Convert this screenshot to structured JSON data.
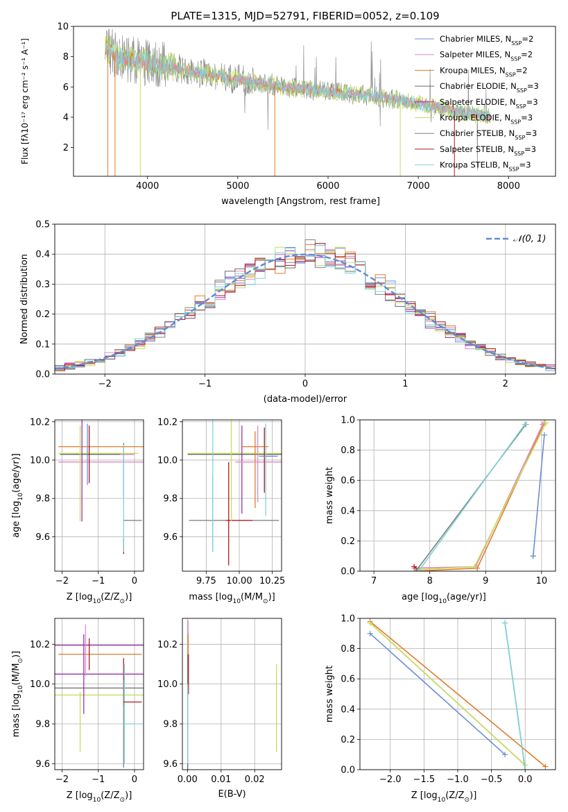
{
  "title": "PLATE=1315, MJD=52791, FIBERID=0052, z=0.109",
  "colors": {
    "chabrier_miles": "#6a8fd6",
    "salpeter_miles": "#e089c0",
    "kroupa_miles": "#e07b2a",
    "chabrier_elodie": "#6b6b6b",
    "salpeter_elodie": "#9b2fb3",
    "kroupa_elodie": "#c5de5a",
    "chabrier_stelib": "#808080",
    "salpeter_stelib": "#b3161c",
    "kroupa_stelib": "#7fd3d8",
    "gauss": "#5b8bd6"
  },
  "chart_data": [
    {
      "id": "spectrum",
      "type": "line",
      "xlabel": "wavelength [Angstrom, rest frame]",
      "ylabel": "Flux [f$_\\lambda$10$^{-17}$ erg cm$^{-2}$ s$^{-1}$ A$^{-1}$]",
      "ylabel_display": "Flux [fλ10⁻¹⁷ erg cm⁻² s⁻¹ A⁻¹]",
      "xlim": [
        3180,
        8520
      ],
      "ylim": [
        0.1,
        10
      ],
      "xticks": [
        4000,
        5000,
        6000,
        7000,
        8000
      ],
      "yticks": [
        2,
        4,
        6,
        8,
        10
      ],
      "continuum": [
        [
          3530,
          8.6
        ],
        [
          3700,
          7.9
        ],
        [
          4000,
          7.6
        ],
        [
          4500,
          7.0
        ],
        [
          5000,
          6.5
        ],
        [
          5500,
          6.0
        ],
        [
          6000,
          5.7
        ],
        [
          6500,
          5.4
        ],
        [
          7000,
          4.9
        ],
        [
          7500,
          4.3
        ],
        [
          7800,
          4.0
        ]
      ],
      "legend": [
        "Chabrier MILES, N$_{SSP}$=2",
        "Salpeter MILES, N$_{SSP}$=2",
        "Kroupa MILES, N$_{SSP}$=2",
        "Chabrier ELODIE, N$_{SSP}$=3",
        "Salpeter ELODIE, N$_{SSP}$=3",
        "Kroupa ELODIE, N$_{SSP}$=3",
        "Chabrier STELIB, N$_{SSP}$=3",
        "Salpeter STELIB, N$_{SSP}$=3",
        "Kroupa STELIB, N$_{SSP}$=3"
      ],
      "legend_parts": [
        [
          "Chabrier MILES, N",
          "SSP",
          "=2"
        ],
        [
          "Salpeter MILES, N",
          "SSP",
          "=2"
        ],
        [
          "Kroupa MILES, N",
          "SSP",
          "=2"
        ],
        [
          "Chabrier ELODIE, N",
          "SSP",
          "=3"
        ],
        [
          "Salpeter ELODIE, N",
          "SSP",
          "=3"
        ],
        [
          "Kroupa ELODIE, N",
          "SSP",
          "=3"
        ],
        [
          "Chabrier STELIB, N",
          "SSP",
          "=3"
        ],
        [
          "Salpeter STELIB, N",
          "SSP",
          "=3"
        ],
        [
          "Kroupa STELIB, N",
          "SSP",
          "=3"
        ]
      ],
      "legend_placement": "upper right"
    },
    {
      "id": "residual_hist",
      "type": "step-histogram",
      "xlabel": "(data-model)/error",
      "ylabel": "Normed distribution",
      "xlim": [
        -2.5,
        2.5
      ],
      "ylim": [
        0,
        0.5
      ],
      "xticks": [
        -2,
        -1,
        0,
        1,
        2
      ],
      "yticks": [
        0.0,
        0.1,
        0.2,
        0.3,
        0.4,
        0.5
      ],
      "grid": true,
      "bin_width": 0.1,
      "legend": "$\\mathcal{N}(0,1)$",
      "legend_display": "𝒩(0, 1)",
      "legend_placement": "upper right"
    },
    {
      "id": "age_vs_Z",
      "type": "errorbar",
      "xlabel": "Z [log$_{10}$(Z/Z$_\\odot$)]",
      "xlabel_display": [
        "Z [log",
        "10",
        "(Z/Z",
        "⊙",
        ")]"
      ],
      "ylabel": "age  [log$_{10}$(age/yr)]",
      "ylabel_display": [
        "age  [log",
        "10",
        "(age/yr)]"
      ],
      "xlim": [
        -2.2,
        0.25
      ],
      "ylim": [
        9.42,
        10.21
      ],
      "xticks": [
        -2,
        -1,
        0
      ],
      "yticks": [
        9.6,
        9.8,
        10.0,
        10.2
      ],
      "grid": true
    },
    {
      "id": "age_vs_mass",
      "type": "errorbar",
      "xlabel": "mass [log$_{10}$(M/M$_\\odot$)]",
      "xlabel_display": [
        "mass [log",
        "10",
        "(M/M",
        "⊙",
        ")]"
      ],
      "xlim": [
        9.57,
        10.32
      ],
      "ylim": [
        9.42,
        10.21
      ],
      "xticks": [
        9.75,
        10.0,
        10.25
      ],
      "xtick_labels": [
        "9.75",
        "10.00",
        "10.25"
      ],
      "yticks": [
        9.6,
        9.8,
        10.0,
        10.2
      ],
      "grid": true
    },
    {
      "id": "weight_vs_age",
      "type": "line",
      "xlabel": "age  [log$_{10}$(age/yr)]",
      "xlabel_display": [
        "age  [log",
        "10",
        "(age/yr)]"
      ],
      "ylabel": "mass weight",
      "xlim": [
        6.75,
        10.25
      ],
      "ylim": [
        0,
        1.0
      ],
      "xticks": [
        7,
        8,
        9,
        10
      ],
      "yticks": [
        0.0,
        0.2,
        0.4,
        0.6,
        0.8,
        1.0
      ],
      "grid": true,
      "series": [
        {
          "color": "chabrier_miles",
          "x": [
            9.85,
            10.05,
            9.85
          ],
          "y": [
            0.1,
            0.9,
            0.1
          ]
        },
        {
          "color": "kroupa_miles",
          "x": [
            7.75,
            8.85,
            10.05
          ],
          "y": [
            0.0,
            0.02,
            0.98
          ]
        },
        {
          "color": "salpeter_miles",
          "x": [
            7.72,
            8.82,
            10.02
          ],
          "y": [
            0.02,
            0.03,
            0.97
          ]
        },
        {
          "color": "salpeter_stelib",
          "x": [
            7.72,
            7.8
          ],
          "y": [
            0.03,
            0.01
          ]
        },
        {
          "color": "kroupa_elodie",
          "x": [
            7.78,
            8.8,
            10.08
          ],
          "y": [
            0.01,
            0.03,
            0.98
          ]
        },
        {
          "color": "chabrier_stelib",
          "x": [
            7.75,
            9.72
          ],
          "y": [
            0.0,
            0.97
          ]
        },
        {
          "color": "kroupa_stelib",
          "x": [
            7.8,
            9.7
          ],
          "y": [
            0.0,
            0.97
          ]
        }
      ]
    },
    {
      "id": "mass_vs_Z",
      "type": "errorbar",
      "xlabel": "Z [log$_{10}$(Z/Z$_\\odot$)]",
      "xlabel_display": [
        "Z [log",
        "10",
        "(Z/Z",
        "⊙",
        ")]"
      ],
      "ylabel": "mass [log$_{10}$(M/M$_\\odot$)]",
      "ylabel_display": [
        "mass [log",
        "10",
        "(M/M",
        "⊙",
        ")]"
      ],
      "xlim": [
        -2.2,
        0.25
      ],
      "ylim": [
        9.57,
        10.33
      ],
      "xticks": [
        -2,
        -1,
        0
      ],
      "yticks": [
        9.6,
        9.8,
        10.0,
        10.2
      ],
      "grid": true
    },
    {
      "id": "mass_vs_ebv",
      "type": "errorbar",
      "xlabel": "E(B-V)",
      "xlim": [
        -0.0015,
        0.028
      ],
      "ylim": [
        9.57,
        10.33
      ],
      "xticks": [
        0.0,
        0.01,
        0.02
      ],
      "xtick_labels": [
        "0.00",
        "0.01",
        "0.02"
      ],
      "yticks": [
        9.6,
        9.8,
        10.0,
        10.2
      ],
      "grid": true
    },
    {
      "id": "weight_vs_Z",
      "type": "line",
      "xlabel": "Z [log$_{10}$(Z/Z$_\\odot$)]",
      "xlabel_display": [
        "Z [log",
        "10",
        "(Z/Z",
        "⊙",
        ")]"
      ],
      "ylabel": "mass weight",
      "xlim": [
        -2.45,
        0.45
      ],
      "ylim": [
        0,
        1.0
      ],
      "xticks": [
        -2.0,
        -1.5,
        -1.0,
        -0.5,
        0.0
      ],
      "xtick_labels": [
        "−2.0",
        "−1.5",
        "−1.0",
        "−0.5",
        "0.0"
      ],
      "yticks": [
        0.0,
        0.2,
        0.4,
        0.6,
        0.8,
        1.0
      ],
      "grid": true,
      "series": [
        {
          "color": "chabrier_miles",
          "x": [
            -2.3,
            -0.3
          ],
          "y": [
            0.9,
            0.1
          ]
        },
        {
          "color": "kroupa_miles",
          "x": [
            -2.3,
            0.3
          ],
          "y": [
            0.98,
            0.02
          ]
        },
        {
          "color": "salpeter_miles",
          "x": [
            -2.3,
            0.0
          ],
          "y": [
            0.97,
            0.03
          ]
        },
        {
          "color": "kroupa_elodie",
          "x": [
            -2.3,
            0.0
          ],
          "y": [
            0.97,
            0.03
          ]
        },
        {
          "color": "chabrier_stelib",
          "x": [
            -0.3,
            0.0
          ],
          "y": [
            0.97,
            0.0
          ]
        },
        {
          "color": "kroupa_stelib",
          "x": [
            -0.3,
            0.0
          ],
          "y": [
            0.97,
            0.0
          ]
        }
      ]
    }
  ]
}
